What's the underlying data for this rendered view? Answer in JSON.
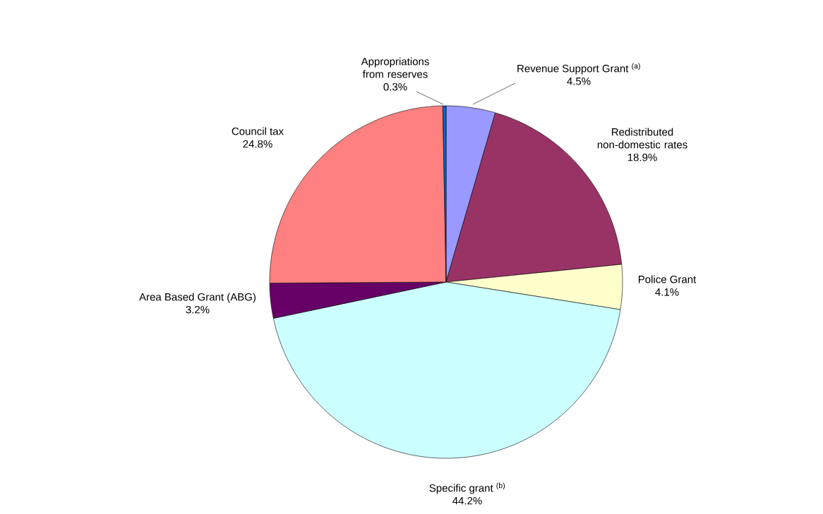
{
  "chart_data": {
    "type": "pie",
    "categories": [
      "Revenue Support Grant $^{(a)}$",
      "Redistributed non-domestic rates",
      "Police Grant",
      "Specific grant $^{(b)}$",
      "Area Based Grant (ABG)",
      "Council tax",
      "Appropriations from reserves"
    ],
    "values": [
      4.5,
      18.9,
      4.1,
      44.2,
      3.2,
      24.8,
      0.3
    ],
    "value_labels": [
      "4.5%",
      "18.9%",
      "4.1%",
      "44.2%",
      "3.2%",
      "24.8%",
      "0.3%"
    ],
    "colors": [
      "#9999ff",
      "#993366",
      "#ffffcc",
      "#ccffff",
      "#660066",
      "#ff8080",
      "#0066cc"
    ],
    "legend": false
  }
}
